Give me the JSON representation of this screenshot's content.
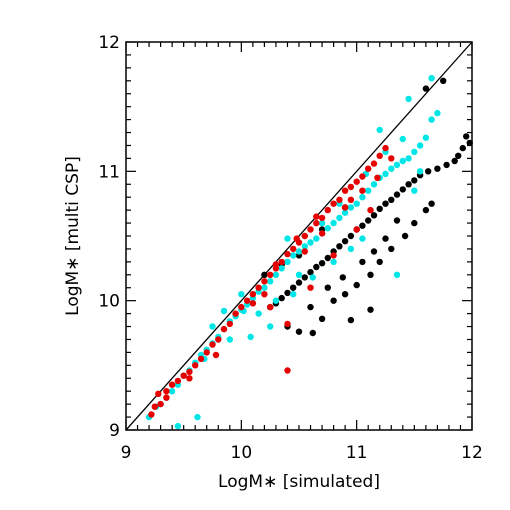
{
  "chart_data": {
    "type": "scatter",
    "title": "",
    "xlabel": "LogM∗ [simulated]",
    "ylabel": "LogM∗ [multi CSP]",
    "xlim": [
      9,
      12
    ],
    "ylim": [
      9,
      12
    ],
    "x_ticks": [
      9,
      10,
      11,
      12
    ],
    "x_tick_labels": [
      "9",
      "10",
      "11",
      "12"
    ],
    "y_ticks": [
      9,
      10,
      11,
      12
    ],
    "y_tick_labels": [
      "9",
      "10",
      "11",
      "12"
    ],
    "grid": false,
    "reference_line": {
      "type": "one-to-one",
      "from": [
        9,
        9
      ],
      "to": [
        12,
        12
      ],
      "color": "#000000"
    },
    "series": [
      {
        "color": "#000000",
        "points": [
          [
            11.6,
            11.64
          ],
          [
            11.75,
            11.7
          ],
          [
            11.95,
            11.27
          ],
          [
            11.98,
            11.22
          ],
          [
            11.92,
            11.18
          ],
          [
            11.88,
            11.12
          ],
          [
            11.85,
            11.08
          ],
          [
            11.78,
            11.05
          ],
          [
            11.7,
            11.02
          ],
          [
            11.62,
            11.0
          ],
          [
            11.55,
            10.97
          ],
          [
            11.5,
            10.93
          ],
          [
            11.45,
            10.9
          ],
          [
            11.4,
            10.86
          ],
          [
            11.35,
            10.82
          ],
          [
            11.3,
            10.78
          ],
          [
            11.25,
            10.75
          ],
          [
            11.2,
            10.71
          ],
          [
            11.15,
            10.66
          ],
          [
            11.1,
            10.62
          ],
          [
            11.05,
            10.58
          ],
          [
            11.0,
            10.55
          ],
          [
            10.95,
            10.5
          ],
          [
            10.9,
            10.46
          ],
          [
            10.85,
            10.42
          ],
          [
            10.8,
            10.38
          ],
          [
            10.75,
            10.33
          ],
          [
            10.7,
            10.29
          ],
          [
            10.65,
            10.26
          ],
          [
            10.6,
            10.22
          ],
          [
            10.55,
            10.18
          ],
          [
            10.5,
            10.14
          ],
          [
            10.45,
            10.1
          ],
          [
            10.4,
            10.06
          ],
          [
            10.35,
            10.02
          ],
          [
            10.3,
            9.98
          ],
          [
            10.25,
            9.95
          ],
          [
            10.4,
            9.8
          ],
          [
            10.5,
            9.76
          ],
          [
            10.62,
            9.75
          ],
          [
            10.7,
            9.86
          ],
          [
            10.6,
            9.95
          ],
          [
            10.8,
            10.0
          ],
          [
            10.9,
            10.05
          ],
          [
            11.0,
            10.12
          ],
          [
            11.12,
            10.2
          ],
          [
            11.2,
            10.3
          ],
          [
            11.3,
            10.4
          ],
          [
            11.42,
            10.5
          ],
          [
            11.5,
            10.6
          ],
          [
            11.6,
            10.7
          ],
          [
            11.65,
            10.75
          ],
          [
            10.95,
            9.85
          ],
          [
            11.12,
            9.93
          ],
          [
            11.15,
            10.38
          ],
          [
            11.05,
            10.3
          ],
          [
            10.88,
            10.18
          ],
          [
            10.75,
            10.1
          ],
          [
            11.25,
            10.48
          ],
          [
            11.35,
            10.62
          ],
          [
            10.2,
            10.2
          ],
          [
            10.35,
            10.28
          ],
          [
            10.5,
            10.35
          ],
          [
            10.7,
            10.55
          ],
          [
            10.9,
            10.72
          ]
        ]
      },
      {
        "color": "#00e6e6",
        "points": [
          [
            9.2,
            9.1
          ],
          [
            9.26,
            9.18
          ],
          [
            9.3,
            9.2
          ],
          [
            9.35,
            9.25
          ],
          [
            9.4,
            9.3
          ],
          [
            9.45,
            9.35
          ],
          [
            9.5,
            9.42
          ],
          [
            9.55,
            9.46
          ],
          [
            9.6,
            9.52
          ],
          [
            9.65,
            9.58
          ],
          [
            9.7,
            9.62
          ],
          [
            9.75,
            9.67
          ],
          [
            9.8,
            9.72
          ],
          [
            9.85,
            9.78
          ],
          [
            9.9,
            9.84
          ],
          [
            9.95,
            9.88
          ],
          [
            10.0,
            9.93
          ],
          [
            10.05,
            9.97
          ],
          [
            10.1,
            10.02
          ],
          [
            10.15,
            10.07
          ],
          [
            10.2,
            10.1
          ],
          [
            10.25,
            10.15
          ],
          [
            10.3,
            10.2
          ],
          [
            10.35,
            10.25
          ],
          [
            10.4,
            10.3
          ],
          [
            10.45,
            10.35
          ],
          [
            10.5,
            10.38
          ],
          [
            10.55,
            10.42
          ],
          [
            10.6,
            10.45
          ],
          [
            10.65,
            10.48
          ],
          [
            10.7,
            10.52
          ],
          [
            10.75,
            10.56
          ],
          [
            10.8,
            10.6
          ],
          [
            10.85,
            10.64
          ],
          [
            10.9,
            10.68
          ],
          [
            10.95,
            10.72
          ],
          [
            11.0,
            10.75
          ],
          [
            11.05,
            10.8
          ],
          [
            11.1,
            10.85
          ],
          [
            11.15,
            10.9
          ],
          [
            11.2,
            10.95
          ],
          [
            11.25,
            10.98
          ],
          [
            11.3,
            11.02
          ],
          [
            11.35,
            11.05
          ],
          [
            11.4,
            11.08
          ],
          [
            11.45,
            11.1
          ],
          [
            11.5,
            11.15
          ],
          [
            11.55,
            11.2
          ],
          [
            11.6,
            11.26
          ],
          [
            11.65,
            11.4
          ],
          [
            11.7,
            11.45
          ],
          [
            11.65,
            11.72
          ],
          [
            11.45,
            11.56
          ],
          [
            11.2,
            11.32
          ],
          [
            11.5,
            10.85
          ],
          [
            11.35,
            10.2
          ],
          [
            10.02,
            9.92
          ],
          [
            9.9,
            9.7
          ],
          [
            9.68,
            9.55
          ],
          [
            10.08,
            9.72
          ],
          [
            10.25,
            9.8
          ],
          [
            10.45,
            10.05
          ],
          [
            10.62,
            10.18
          ],
          [
            10.8,
            10.3
          ],
          [
            10.95,
            10.4
          ],
          [
            11.05,
            10.48
          ],
          [
            9.62,
            9.1
          ],
          [
            9.45,
            9.03
          ],
          [
            10.4,
            10.48
          ],
          [
            10.55,
            10.5
          ],
          [
            10.7,
            10.6
          ],
          [
            10.85,
            10.75
          ],
          [
            11.08,
            10.98
          ],
          [
            11.25,
            11.15
          ],
          [
            10.15,
            9.9
          ],
          [
            10.3,
            10.0
          ],
          [
            10.5,
            10.2
          ],
          [
            9.75,
            9.8
          ],
          [
            9.85,
            9.92
          ],
          [
            10.0,
            10.05
          ],
          [
            11.4,
            11.25
          ],
          [
            11.55,
            11.0
          ]
        ]
      },
      {
        "color": "#e60000",
        "points": [
          [
            9.22,
            9.12
          ],
          [
            9.3,
            9.2
          ],
          [
            9.28,
            9.28
          ],
          [
            9.35,
            9.3
          ],
          [
            9.4,
            9.35
          ],
          [
            9.45,
            9.38
          ],
          [
            9.5,
            9.42
          ],
          [
            9.55,
            9.45
          ],
          [
            9.6,
            9.5
          ],
          [
            9.65,
            9.55
          ],
          [
            9.7,
            9.6
          ],
          [
            9.75,
            9.66
          ],
          [
            9.8,
            9.7
          ],
          [
            9.85,
            9.78
          ],
          [
            9.9,
            9.82
          ],
          [
            9.95,
            9.9
          ],
          [
            10.0,
            9.95
          ],
          [
            10.05,
            10.0
          ],
          [
            10.1,
            10.05
          ],
          [
            10.15,
            10.1
          ],
          [
            10.2,
            10.15
          ],
          [
            10.25,
            10.2
          ],
          [
            10.3,
            10.25
          ],
          [
            10.35,
            10.3
          ],
          [
            10.4,
            10.36
          ],
          [
            10.45,
            10.4
          ],
          [
            10.5,
            10.45
          ],
          [
            10.55,
            10.5
          ],
          [
            10.6,
            10.55
          ],
          [
            10.65,
            10.6
          ],
          [
            10.7,
            10.64
          ],
          [
            10.75,
            10.7
          ],
          [
            10.8,
            10.75
          ],
          [
            10.85,
            10.78
          ],
          [
            10.9,
            10.85
          ],
          [
            10.95,
            10.88
          ],
          [
            11.0,
            10.92
          ],
          [
            11.05,
            10.96
          ],
          [
            11.1,
            11.02
          ],
          [
            11.15,
            11.06
          ],
          [
            11.2,
            11.12
          ],
          [
            11.25,
            11.18
          ],
          [
            10.4,
            9.46
          ],
          [
            10.4,
            9.82
          ],
          [
            10.25,
            9.95
          ],
          [
            10.6,
            10.1
          ],
          [
            10.8,
            10.35
          ],
          [
            11.0,
            10.55
          ],
          [
            11.12,
            10.7
          ],
          [
            11.05,
            10.85
          ],
          [
            10.9,
            10.72
          ],
          [
            9.78,
            9.58
          ],
          [
            10.1,
            9.98
          ],
          [
            10.2,
            10.05
          ],
          [
            10.55,
            10.38
          ],
          [
            10.7,
            10.52
          ],
          [
            10.95,
            10.78
          ],
          [
            9.55,
            9.4
          ],
          [
            9.35,
            9.25
          ],
          [
            9.25,
            9.18
          ],
          [
            10.3,
            10.28
          ],
          [
            10.48,
            10.48
          ],
          [
            10.65,
            10.65
          ],
          [
            11.3,
            11.1
          ],
          [
            11.18,
            10.95
          ]
        ]
      }
    ]
  }
}
